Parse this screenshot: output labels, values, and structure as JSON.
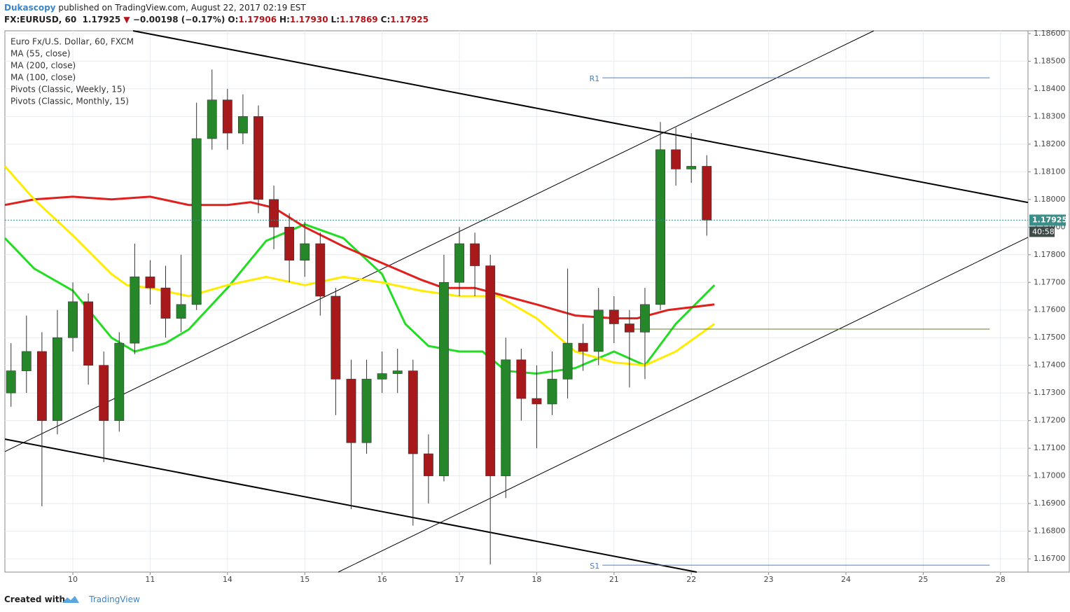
{
  "header": {
    "publisher": "Dukascopy",
    "published": "published on TradingView.com, August 22, 2017 02:19 EST",
    "symbol": "FX:EURUSD, 60",
    "price": "1.17925",
    "arrow": "▼",
    "change": "−0.00198 (−0.17%)",
    "ohlc": [
      {
        "label": "O:",
        "value": "1.17906"
      },
      {
        "label": "H:",
        "value": "1.17930"
      },
      {
        "label": "L:",
        "value": "1.17869"
      },
      {
        "label": "C:",
        "value": "1.17925"
      }
    ]
  },
  "chart_data": {
    "type": "candlestick",
    "instrument": "Euro Fx/U.S. Dollar, 60, FXCM",
    "xlim": [
      -0.879,
      12.355
    ],
    "xticks": [
      {
        "value": 0,
        "label": "10"
      },
      {
        "value": 1,
        "label": "11"
      },
      {
        "value": 2,
        "label": "14"
      },
      {
        "value": 3,
        "label": "15"
      },
      {
        "value": 4,
        "label": "16"
      },
      {
        "value": 5,
        "label": "17"
      },
      {
        "value": 6,
        "label": "18"
      },
      {
        "value": 7,
        "label": "21"
      },
      {
        "value": 8,
        "label": "22"
      },
      {
        "value": 9,
        "label": "23"
      },
      {
        "value": 10,
        "label": "24"
      },
      {
        "value": 11,
        "label": "25"
      },
      {
        "value": 12,
        "label": "28"
      }
    ],
    "ylim": [
      1.16652,
      1.1861
    ],
    "yticks": [
      {
        "value": 1.167,
        "label": "1.16700"
      },
      {
        "value": 1.168,
        "label": "1.16800"
      },
      {
        "value": 1.169,
        "label": "1.16900"
      },
      {
        "value": 1.17,
        "label": "1.17000"
      },
      {
        "value": 1.171,
        "label": "1.17100"
      },
      {
        "value": 1.172,
        "label": "1.17200"
      },
      {
        "value": 1.173,
        "label": "1.17300"
      },
      {
        "value": 1.174,
        "label": "1.17400"
      },
      {
        "value": 1.175,
        "label": "1.17500"
      },
      {
        "value": 1.176,
        "label": "1.17600"
      },
      {
        "value": 1.177,
        "label": "1.17700"
      },
      {
        "value": 1.178,
        "label": "1.17800"
      },
      {
        "value": 1.179,
        "label": "1.17900"
      },
      {
        "value": 1.18,
        "label": "1.18000"
      },
      {
        "value": 1.181,
        "label": "1.18100"
      },
      {
        "value": 1.182,
        "label": "1.18200"
      },
      {
        "value": 1.183,
        "label": "1.18300"
      },
      {
        "value": 1.184,
        "label": "1.18400"
      },
      {
        "value": 1.185,
        "label": "1.18500"
      },
      {
        "value": 1.186,
        "label": "1.18600"
      }
    ],
    "grid": true,
    "up_color": "#26862a",
    "down_color": "#a8191c",
    "x": [
      -0.8,
      -0.6,
      -0.4,
      -0.2,
      0,
      0.2,
      0.4,
      0.6,
      0.8,
      1.0,
      1.2,
      1.4,
      1.6,
      1.8,
      2.0,
      2.2,
      2.4,
      2.6,
      2.8,
      3.0,
      3.2,
      3.4,
      3.6,
      3.8,
      4.0,
      4.2,
      4.4,
      4.6,
      4.8,
      5.0,
      5.2,
      5.4,
      5.6,
      5.8,
      6.0,
      6.2,
      6.4,
      6.6,
      6.8,
      7.0,
      7.2,
      7.4,
      7.6,
      7.8,
      8.0,
      8.2
    ],
    "open": [
      1.173,
      1.1738,
      1.1745,
      1.172,
      1.175,
      1.1763,
      1.174,
      1.172,
      1.1748,
      1.1772,
      1.1768,
      1.1757,
      1.1762,
      1.1822,
      1.1836,
      1.1824,
      1.183,
      1.18,
      1.179,
      1.1778,
      1.1784,
      1.1765,
      1.1735,
      1.1712,
      1.1735,
      1.1737,
      1.1738,
      1.1708,
      1.17,
      1.177,
      1.1784,
      1.1776,
      1.17,
      1.1742,
      1.1728,
      1.1726,
      1.1735,
      1.1748,
      1.1745,
      1.176,
      1.1755,
      1.1752,
      1.1762,
      1.1818,
      1.1811,
      1.1812
    ],
    "high": [
      1.1748,
      1.1758,
      1.1752,
      1.176,
      1.177,
      1.1766,
      1.1745,
      1.1752,
      1.1784,
      1.1778,
      1.1776,
      1.178,
      1.1835,
      1.1847,
      1.184,
      1.1838,
      1.1834,
      1.1805,
      1.1795,
      1.1792,
      1.1788,
      1.1768,
      1.1742,
      1.1742,
      1.1745,
      1.1746,
      1.1742,
      1.1715,
      1.178,
      1.179,
      1.1788,
      1.178,
      1.175,
      1.1746,
      1.174,
      1.1745,
      1.1775,
      1.1755,
      1.1768,
      1.1765,
      1.176,
      1.1768,
      1.1828,
      1.1826,
      1.1824,
      1.1816
    ],
    "low": [
      1.1725,
      1.173,
      1.1689,
      1.1715,
      1.1745,
      1.1733,
      1.1705,
      1.1716,
      1.1744,
      1.1762,
      1.175,
      1.1752,
      1.176,
      1.1818,
      1.1818,
      1.182,
      1.1795,
      1.1782,
      1.177,
      1.1772,
      1.1758,
      1.1722,
      1.1688,
      1.1708,
      1.173,
      1.173,
      1.1682,
      1.169,
      1.1698,
      1.1765,
      1.1765,
      1.1668,
      1.1692,
      1.172,
      1.171,
      1.1722,
      1.1728,
      1.1738,
      1.174,
      1.1748,
      1.1732,
      1.1735,
      1.176,
      1.1805,
      1.1806,
      1.17869
    ],
    "close": [
      1.1738,
      1.1745,
      1.172,
      1.175,
      1.1763,
      1.174,
      1.172,
      1.1748,
      1.1772,
      1.1768,
      1.1757,
      1.1762,
      1.1822,
      1.1836,
      1.1824,
      1.183,
      1.18,
      1.179,
      1.1778,
      1.1784,
      1.1765,
      1.1735,
      1.1712,
      1.1735,
      1.1737,
      1.1738,
      1.1708,
      1.17,
      1.177,
      1.1784,
      1.1776,
      1.17,
      1.1742,
      1.1728,
      1.1726,
      1.1735,
      1.1748,
      1.1745,
      1.176,
      1.1755,
      1.1752,
      1.1762,
      1.1818,
      1.1811,
      1.1812,
      1.17925
    ],
    "studies": [
      {
        "name": "MA (55, close)",
        "color": "#22dd22",
        "x": [
          -0.879,
          -0.5,
          0,
          0.5,
          0.8,
          1.2,
          1.5,
          2.0,
          2.5,
          3.0,
          3.5,
          4.0,
          4.3,
          4.6,
          5.0,
          5.3,
          5.6,
          6.0,
          6.5,
          7.0,
          7.4,
          7.8,
          8.3
        ],
        "values": [
          1.1786,
          1.1775,
          1.1767,
          1.175,
          1.1745,
          1.1748,
          1.1753,
          1.1768,
          1.1785,
          1.1791,
          1.1786,
          1.1773,
          1.1755,
          1.1747,
          1.1745,
          1.1745,
          1.1738,
          1.1737,
          1.1739,
          1.1745,
          1.174,
          1.1755,
          1.1769
        ]
      },
      {
        "name": "MA (200, close)",
        "color": "#e0201c",
        "x": [
          -0.879,
          -0.5,
          0,
          0.5,
          1.0,
          1.5,
          2.0,
          2.3,
          2.6,
          3.0,
          3.5,
          4.0,
          4.5,
          4.8,
          5.2,
          5.6,
          6.0,
          6.5,
          7.0,
          7.3,
          7.7,
          8.3
        ],
        "values": [
          1.1798,
          1.18,
          1.1801,
          1.18,
          1.1801,
          1.1798,
          1.1798,
          1.1799,
          1.1797,
          1.179,
          1.1783,
          1.1777,
          1.1771,
          1.1768,
          1.1768,
          1.1765,
          1.1762,
          1.1758,
          1.1757,
          1.1757,
          1.176,
          1.1762
        ]
      },
      {
        "name": "MA (100, close)",
        "color": "#ffec00",
        "x": [
          -0.879,
          -0.5,
          0,
          0.5,
          0.7,
          1.0,
          1.5,
          2.0,
          2.5,
          3.0,
          3.5,
          4.0,
          4.5,
          5.0,
          5.5,
          6.0,
          6.5,
          7.0,
          7.4,
          7.8,
          8.3
        ],
        "values": [
          1.1812,
          1.18,
          1.1787,
          1.1773,
          1.1769,
          1.1768,
          1.1765,
          1.1769,
          1.1772,
          1.1769,
          1.1772,
          1.177,
          1.1767,
          1.1765,
          1.1765,
          1.1757,
          1.1745,
          1.1741,
          1.174,
          1.1745,
          1.1755
        ]
      },
      {
        "name": "Pivots (Classic, Weekly, 15)",
        "color": "#4a7fc0",
        "levels": [
          {
            "label": "R1",
            "value": 1.1844,
            "x": [
              6.85,
              11.86
            ]
          },
          {
            "label": "S1",
            "value": 1.16677,
            "x": [
              6.85,
              11.86
            ]
          }
        ]
      },
      {
        "name": "Pivots (Classic, Monthly, 15)",
        "color": "#5f7f1f",
        "levels": [
          {
            "value": 1.17531,
            "x": [
              7.2,
              11.86
            ]
          }
        ]
      }
    ],
    "trendlines": [
      {
        "x": [
          0.78,
          12.355
        ],
        "y": [
          1.1861,
          1.17989
        ],
        "width": 2
      },
      {
        "x": [
          -0.879,
          10.36
        ],
        "y": [
          1.17088,
          1.1861
        ],
        "width": 1
      },
      {
        "x": [
          -0.879,
          8.07
        ],
        "y": [
          1.17133,
          1.16652
        ],
        "width": 2
      },
      {
        "x": [
          3.433,
          12.355
        ],
        "y": [
          1.16652,
          1.17863
        ],
        "width": 1
      }
    ],
    "last": {
      "value": 1.17925,
      "label": "1.17925",
      "countdown": "40:58",
      "color": "#3a8f8a"
    }
  },
  "footer": {
    "created": "Created with",
    "brand": "TradingView"
  }
}
